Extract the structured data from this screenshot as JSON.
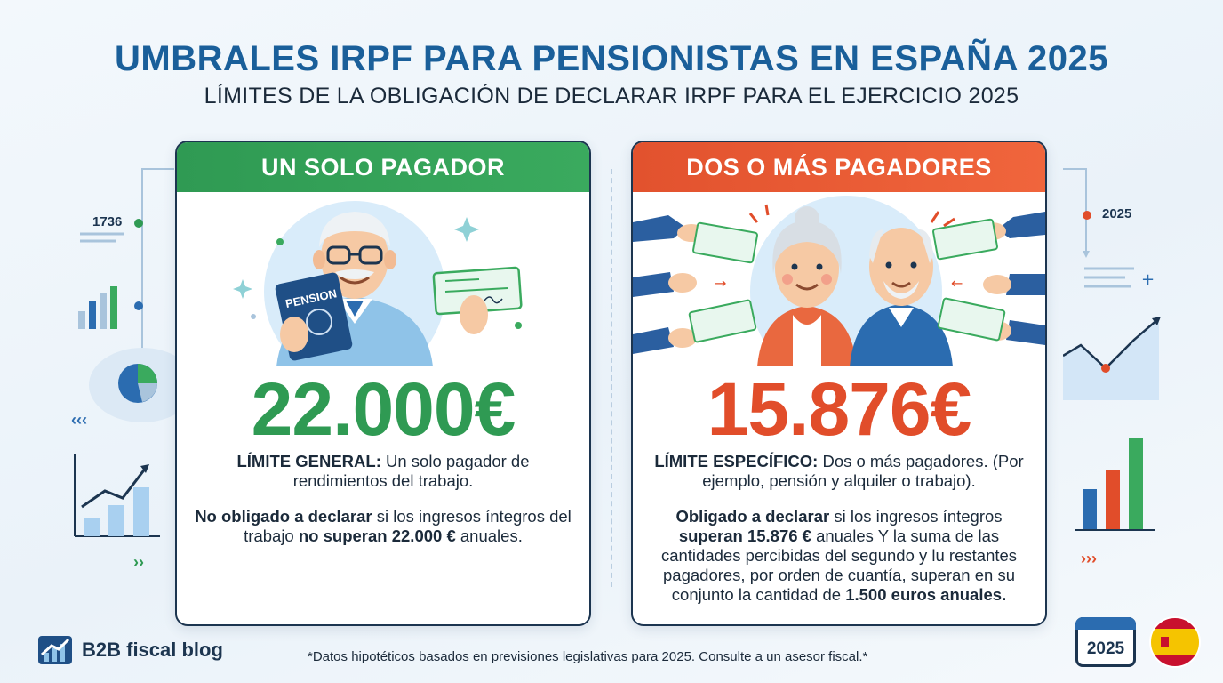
{
  "header": {
    "title": "UMBRALES IRPF PARA PENSIONISTAS EN ESPAÑA 2025",
    "subtitle": "LÍMITES DE LA OBLIGACIÓN DE DECLARAR IRPF PARA EL EJERCICIO 2025"
  },
  "left_card": {
    "title": "UN SOLO PAGADOR",
    "amount": "22.000€",
    "booklet_label": "PENSION",
    "limit_label": "LÍMITE GENERAL:",
    "limit_text": " Un solo pagador de rendimientos del trabajo.",
    "obligation_bold": "No obligado a declarar",
    "obligation_text1": " si los ingresos íntegros del trabajo ",
    "obligation_bold2": "no superan 22.000 €",
    "obligation_text2": " anuales.",
    "accent": "#2f9a53"
  },
  "right_card": {
    "title": "DOS O MÁS PAGADORES",
    "amount": "15.876€",
    "limit_label": "LÍMITE ESPECÍFICO:",
    "limit_text": " Dos o más pagadores. (Por ejemplo, pensión y alquiler o trabajo).",
    "obligation_bold": "Obligado a declarar",
    "obligation_text1": " si los ingresos íntegros ",
    "obligation_bold2": "superan 15.876 €",
    "obligation_text2": " anuales Y la suma de las cantidades percibidas del segundo y lu restantes pagadores, por orden de cuantía, superan en su conjunto la cantidad de ",
    "obligation_bold3": "1.500 euros anuales.",
    "accent": "#e14d2a"
  },
  "side_labels": {
    "left_number": "1736",
    "right_year": "2025"
  },
  "footer": {
    "logo_text": "B2B fiscal blog",
    "footnote": "*Datos hipotéticos basados en previsiones legislativas para 2025. Consulte a un asesor fiscal.*",
    "calendar_year": "2025"
  },
  "icons": [
    "logo-chart-icon",
    "calendar-icon",
    "spain-flag-icon",
    "pie-chart-icon",
    "bar-chart-icon",
    "line-chart-icon",
    "cheque-icon",
    "hand-icon"
  ]
}
